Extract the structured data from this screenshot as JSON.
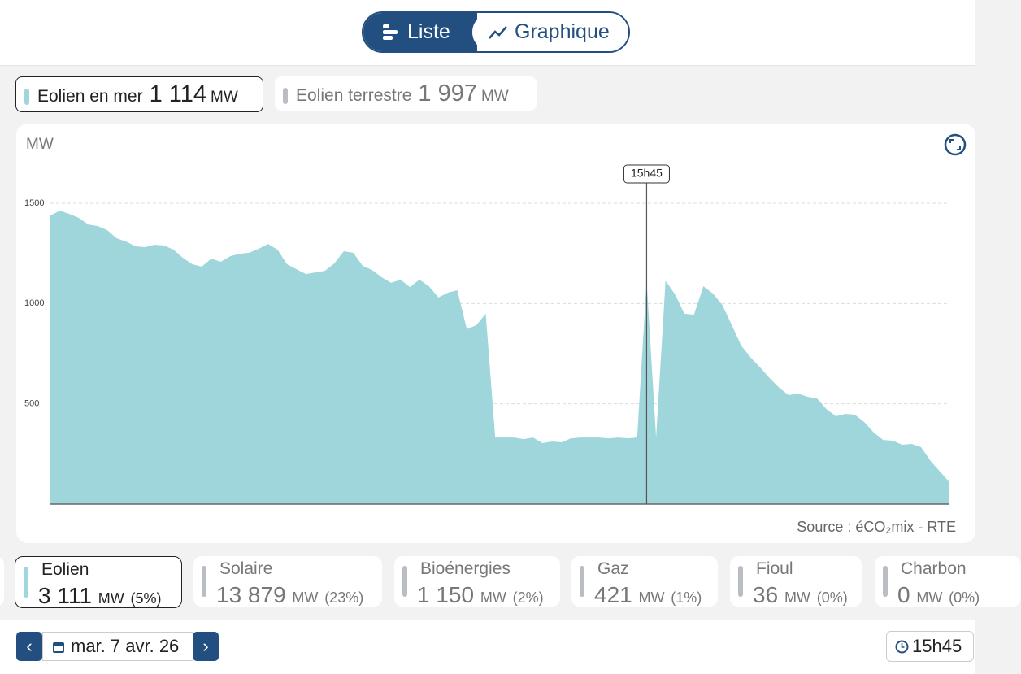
{
  "toggle": {
    "list": "Liste",
    "chart": "Graphique"
  },
  "tabs": [
    {
      "label": "Eolien en mer",
      "value": "1 114",
      "unit": "MW"
    },
    {
      "label": "Eolien terrestre",
      "value": "1 997",
      "unit": "MW"
    }
  ],
  "chart_data": {
    "type": "area",
    "y_label": "MW",
    "cursor": "15h45",
    "source": "Source : éCO₂mix - RTE",
    "color": "#9fd6db",
    "grid": true,
    "ylim": [
      0,
      1500
    ],
    "yticks": [
      500,
      1000,
      1500
    ],
    "categories": [
      null,
      null,
      null,
      null,
      null,
      null,
      null,
      null,
      null,
      null,
      null,
      null,
      null,
      null,
      null,
      null,
      null,
      null,
      null,
      null,
      null,
      null,
      null,
      null,
      null,
      null,
      null,
      null,
      null,
      null,
      null,
      null,
      null,
      null,
      null,
      null,
      null,
      null,
      null,
      null,
      null,
      null,
      null,
      null,
      null,
      null,
      null,
      null,
      null,
      null,
      null,
      null,
      null,
      null,
      null,
      null,
      null,
      null,
      null,
      null,
      null,
      null,
      null,
      null,
      null,
      null,
      null,
      null,
      null,
      null,
      null,
      null,
      null,
      null,
      null,
      null,
      null,
      null,
      null,
      null,
      null,
      null,
      null,
      null,
      null,
      null,
      null,
      null,
      null,
      null,
      null,
      null,
      null,
      null,
      null,
      null
    ],
    "values": [
      1439,
      1463,
      1447,
      1427,
      1394,
      1386,
      1366,
      1325,
      1309,
      1285,
      1281,
      1293,
      1289,
      1269,
      1228,
      1196,
      1184,
      1224,
      1208,
      1236,
      1248,
      1253,
      1273,
      1297,
      1269,
      1196,
      1171,
      1147,
      1155,
      1163,
      1200,
      1261,
      1253,
      1188,
      1167,
      1131,
      1103,
      1119,
      1082,
      1119,
      1086,
      1030,
      1054,
      1066,
      872,
      892,
      949,
      332,
      332,
      332,
      324,
      332,
      304,
      312,
      308,
      328,
      332,
      332,
      332,
      328,
      332,
      328,
      332,
      1114,
      332,
      1114,
      1046,
      949,
      944,
      1086,
      1050,
      993,
      892,
      790,
      730,
      681,
      628,
      580,
      543,
      551,
      535,
      527,
      474,
      438,
      450,
      446,
      409,
      357,
      320,
      316,
      296,
      300,
      284,
      215,
      162,
      109
    ]
  },
  "cards": [
    {
      "label": "Eolien",
      "value": "3 111",
      "unit": "MW",
      "share": "(5%)"
    },
    {
      "label": "Solaire",
      "value": "13 879",
      "unit": "MW",
      "share": "(23%)"
    },
    {
      "label": "Bioénergies",
      "value": "1 150",
      "unit": "MW",
      "share": "(2%)"
    },
    {
      "label": "Gaz",
      "value": "421",
      "unit": "MW",
      "share": "(1%)"
    },
    {
      "label": "Fioul",
      "value": "36",
      "unit": "MW",
      "share": "(0%)"
    },
    {
      "label": "Charbon",
      "value": "0",
      "unit": "MW",
      "share": "(0%)"
    }
  ],
  "footer": {
    "date": "mar. 7 avr. 26",
    "time": "15h45"
  }
}
